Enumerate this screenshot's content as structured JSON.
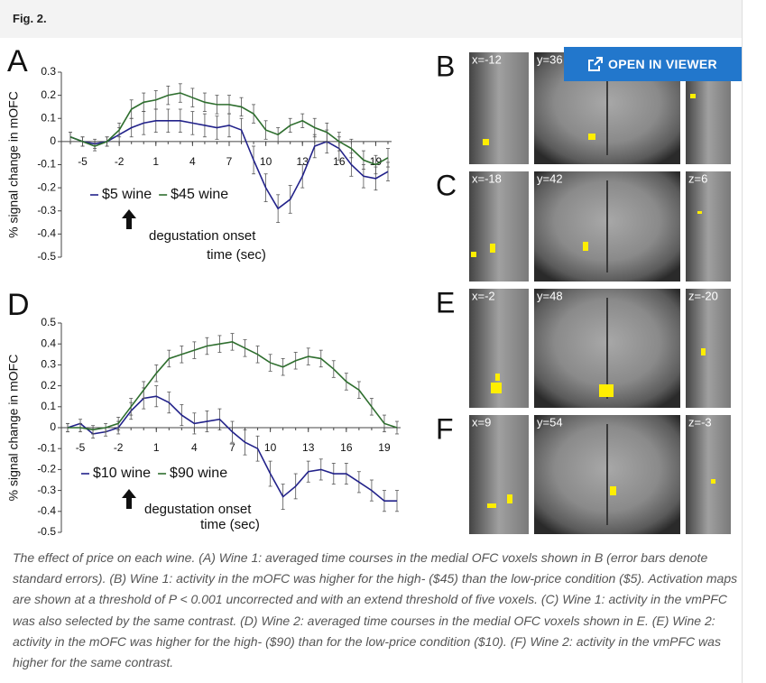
{
  "header": {
    "title": "Fig. 2."
  },
  "button": "OPEN IN VIEWER",
  "chart_data": [
    {
      "type": "line",
      "panel": "A",
      "y_label": "% signal change in mOFC",
      "x_label": "time (sec)",
      "annotation": "degustation onset",
      "x": [
        -6,
        -5,
        -4,
        -3,
        -2,
        -1,
        0,
        1,
        2,
        3,
        4,
        5,
        6,
        7,
        8,
        9,
        10,
        11,
        12,
        13,
        14,
        15,
        16,
        17,
        18,
        19,
        20
      ],
      "xlim": [
        -6,
        20
      ],
      "xticks": [
        -5,
        -2,
        1,
        4,
        7,
        10,
        13,
        16,
        19
      ],
      "ylim": [
        -0.5,
        0.3
      ],
      "yticks": [
        0.3,
        0.2,
        0.1,
        0,
        -0.1,
        -0.2,
        -0.3,
        -0.4,
        -0.5
      ],
      "series": [
        {
          "name": "$5 wine",
          "color": "#22228a",
          "values": [
            0.02,
            0.0,
            -0.01,
            0.0,
            0.03,
            0.06,
            0.08,
            0.09,
            0.09,
            0.09,
            0.08,
            0.07,
            0.06,
            0.07,
            0.05,
            -0.08,
            -0.2,
            -0.29,
            -0.25,
            -0.15,
            -0.02,
            0.0,
            -0.03,
            -0.1,
            -0.15,
            -0.16,
            -0.13
          ],
          "errors": [
            0.02,
            0.02,
            0.02,
            0.02,
            0.03,
            0.04,
            0.05,
            0.05,
            0.05,
            0.05,
            0.05,
            0.05,
            0.05,
            0.05,
            0.05,
            0.06,
            0.06,
            0.06,
            0.06,
            0.05,
            0.05,
            0.05,
            0.05,
            0.05,
            0.05,
            0.05,
            0.04
          ]
        },
        {
          "name": "$45 wine",
          "color": "#2e6e2e",
          "values": [
            0.02,
            0.0,
            -0.02,
            0.0,
            0.05,
            0.14,
            0.17,
            0.18,
            0.2,
            0.21,
            0.19,
            0.17,
            0.16,
            0.16,
            0.15,
            0.12,
            0.05,
            0.03,
            0.07,
            0.09,
            0.06,
            0.04,
            0.0,
            -0.03,
            -0.08,
            -0.1,
            -0.07
          ],
          "errors": [
            0.02,
            0.02,
            0.02,
            0.02,
            0.03,
            0.04,
            0.04,
            0.04,
            0.04,
            0.04,
            0.04,
            0.04,
            0.04,
            0.04,
            0.04,
            0.04,
            0.04,
            0.03,
            0.03,
            0.03,
            0.04,
            0.04,
            0.04,
            0.04,
            0.04,
            0.04,
            0.04
          ]
        }
      ]
    },
    {
      "type": "line",
      "panel": "D",
      "y_label": "% signal change in mOFC",
      "x_label": "time (sec)",
      "annotation": "degustation onset",
      "x": [
        -6,
        -5,
        -4,
        -3,
        -2,
        -1,
        0,
        1,
        2,
        3,
        4,
        5,
        6,
        7,
        8,
        9,
        10,
        11,
        12,
        13,
        14,
        15,
        16,
        17,
        18,
        19,
        20
      ],
      "xlim": [
        -6,
        20
      ],
      "xticks": [
        -5,
        -2,
        1,
        4,
        7,
        10,
        13,
        16,
        19
      ],
      "ylim": [
        -0.5,
        0.5
      ],
      "yticks": [
        0.5,
        0.4,
        0.3,
        0.2,
        0.1,
        0,
        -0.1,
        -0.2,
        -0.3,
        -0.4,
        -0.5
      ],
      "series": [
        {
          "name": "$10 wine",
          "color": "#22228a",
          "values": [
            0.0,
            0.02,
            -0.03,
            -0.02,
            0.0,
            0.08,
            0.14,
            0.15,
            0.12,
            0.06,
            0.02,
            0.03,
            0.04,
            -0.02,
            -0.07,
            -0.1,
            -0.22,
            -0.33,
            -0.28,
            -0.21,
            -0.2,
            -0.22,
            -0.22,
            -0.26,
            -0.3,
            -0.35,
            -0.35
          ],
          "errors": [
            0.02,
            0.02,
            0.02,
            0.02,
            0.03,
            0.04,
            0.05,
            0.05,
            0.05,
            0.05,
            0.05,
            0.05,
            0.05,
            0.05,
            0.06,
            0.06,
            0.06,
            0.06,
            0.06,
            0.05,
            0.05,
            0.05,
            0.05,
            0.05,
            0.05,
            0.05,
            0.05
          ]
        },
        {
          "name": "$90 wine",
          "color": "#2e6e2e",
          "values": [
            0.0,
            0.0,
            -0.01,
            0.0,
            0.02,
            0.1,
            0.18,
            0.26,
            0.33,
            0.35,
            0.37,
            0.39,
            0.4,
            0.41,
            0.38,
            0.35,
            0.31,
            0.29,
            0.32,
            0.34,
            0.33,
            0.28,
            0.22,
            0.18,
            0.1,
            0.02,
            0.0
          ],
          "errors": [
            0.02,
            0.02,
            0.02,
            0.02,
            0.03,
            0.04,
            0.04,
            0.04,
            0.04,
            0.04,
            0.04,
            0.04,
            0.04,
            0.04,
            0.04,
            0.04,
            0.04,
            0.04,
            0.04,
            0.04,
            0.04,
            0.04,
            0.04,
            0.04,
            0.04,
            0.04,
            0.03
          ]
        }
      ]
    }
  ],
  "panels": [
    {
      "letter": "B",
      "views": [
        "x=-12",
        "y=36"
      ]
    },
    {
      "letter": "C",
      "views": [
        "x=-18",
        "y=42",
        "z=6"
      ]
    },
    {
      "letter": "E",
      "views": [
        "x=-2",
        "y=48",
        "z=-20"
      ]
    },
    {
      "letter": "F",
      "views": [
        "x=9",
        "y=54",
        "z=-3"
      ]
    }
  ],
  "caption": "The effect of price on each wine. (A) Wine 1: averaged time courses in the medial OFC voxels shown in B (error bars denote standard errors). (B) Wine 1: activity in the mOFC was higher for the high- ($45) than the low-price condition ($5). Activation maps are shown at a threshold of P < 0.001 uncorrected and with an extend threshold of five voxels. (C) Wine 1: activity in the vmPFC was also selected by the same contrast. (D) Wine 2: averaged time courses in the medial OFC voxels shown in E. (E) Wine 2: activity in the mOFC was higher for the high- ($90) than for the low-price condition ($10). (F) Wine 2: activity in the vmPFC was higher for the same contrast."
}
